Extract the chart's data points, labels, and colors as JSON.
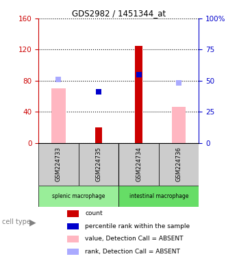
{
  "title": "GDS2982 / 1451344_at",
  "samples": [
    "GSM224733",
    "GSM224735",
    "GSM224734",
    "GSM224736"
  ],
  "left_ylim": [
    0,
    160
  ],
  "right_ylim": [
    0,
    100
  ],
  "left_yticks": [
    0,
    40,
    80,
    120,
    160
  ],
  "right_yticks": [
    0,
    25,
    50,
    75,
    100
  ],
  "right_yticklabels": [
    "0",
    "25",
    "50",
    "75",
    "100%"
  ],
  "pink_bar_values": [
    70,
    0,
    0,
    46
  ],
  "red_bar_values": [
    0,
    20,
    125,
    0
  ],
  "dark_blue_dot_values": [
    null,
    66,
    88,
    null
  ],
  "light_blue_dot_values": [
    82,
    null,
    null,
    77
  ],
  "pink_color": "#FFB6C1",
  "red_color": "#CC0000",
  "dark_blue_color": "#0000CC",
  "light_blue_color": "#AAAAFF",
  "left_axis_color": "#CC0000",
  "right_axis_color": "#0000CC",
  "sample_box_color": "#CCCCCC",
  "splenic_color": "#99EE99",
  "intestinal_color": "#66DD66",
  "legend_items": [
    {
      "label": "count",
      "color": "#CC0000"
    },
    {
      "label": "percentile rank within the sample",
      "color": "#0000CC"
    },
    {
      "label": "value, Detection Call = ABSENT",
      "color": "#FFB6C1"
    },
    {
      "label": "rank, Detection Call = ABSENT",
      "color": "#AAAAFF"
    }
  ],
  "dot_size": 40,
  "bar_width": 0.35,
  "red_bar_width": 0.18
}
